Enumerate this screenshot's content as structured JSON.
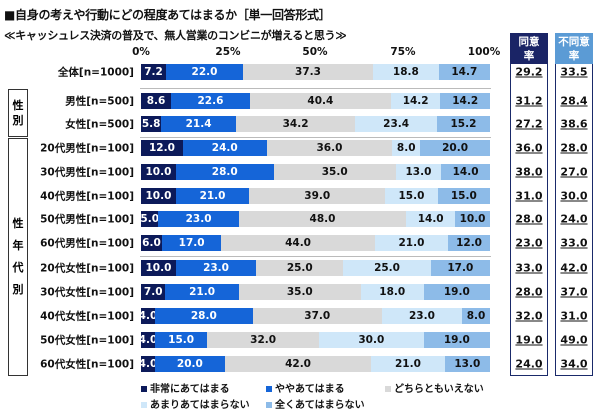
{
  "title": "■自身の考えや行動にどの程度あてはまるか［単一回答形式］",
  "subtitle": "≪キャッシュレス決済の普及で、無人営業のコンビニが増えると思う≫",
  "columns": {
    "agree": "同意率",
    "disagree": "不同意率",
    "agree_color": "#1a2466",
    "disagree_color": "#5b9bd5"
  },
  "groups": {
    "gender": "性別",
    "gender_age": "性年代別"
  },
  "chart_data": {
    "type": "bar",
    "stacked": true,
    "orientation": "horizontal",
    "xlim": [
      0,
      100
    ],
    "xticks": [
      "0%",
      "25%",
      "50%",
      "75%",
      "100%"
    ],
    "legend_position": "bottom",
    "series": [
      {
        "name": "非常にあてはまる",
        "color": "#0c1a5a"
      },
      {
        "name": "ややあてはまる",
        "color": "#1565d8"
      },
      {
        "name": "どちらともいえない",
        "color": "#d9d9d9"
      },
      {
        "name": "あまりあてはまらない",
        "color": "#cfe7f9"
      },
      {
        "name": "全くあてはまらない",
        "color": "#8dbbe8"
      }
    ],
    "rows": [
      {
        "label": "全体[n=1000]",
        "values": [
          7.2,
          22.0,
          37.3,
          18.8,
          14.7
        ],
        "labels": [
          "7.2",
          "22.0",
          "37.3",
          "18.8",
          "14.7"
        ],
        "agree": "29.2",
        "disagree": "33.5"
      },
      {
        "label": "男性[n=500]",
        "values": [
          8.6,
          22.6,
          40.4,
          14.2,
          14.2
        ],
        "labels": [
          "8.6",
          "22.6",
          "40.4",
          "14.2",
          "14.2"
        ],
        "agree": "31.2",
        "disagree": "28.4"
      },
      {
        "label": "女性[n=500]",
        "values": [
          5.8,
          21.4,
          34.2,
          23.4,
          15.2
        ],
        "labels": [
          "5.8",
          "21.4",
          "34.2",
          "23.4",
          "15.2"
        ],
        "agree": "27.2",
        "disagree": "38.6"
      },
      {
        "label": "20代男性[n=100]",
        "values": [
          12.0,
          24.0,
          36.0,
          8.0,
          20.0
        ],
        "labels": [
          "12.0",
          "24.0",
          "36.0",
          "8.0",
          "20.0"
        ],
        "agree": "36.0",
        "disagree": "28.0"
      },
      {
        "label": "30代男性[n=100]",
        "values": [
          10.0,
          28.0,
          35.0,
          13.0,
          14.0
        ],
        "labels": [
          "10.0",
          "28.0",
          "35.0",
          "13.0",
          "14.0"
        ],
        "agree": "38.0",
        "disagree": "27.0"
      },
      {
        "label": "40代男性[n=100]",
        "values": [
          10.0,
          21.0,
          39.0,
          15.0,
          15.0
        ],
        "labels": [
          "10.0",
          "21.0",
          "39.0",
          "15.0",
          "15.0"
        ],
        "agree": "31.0",
        "disagree": "30.0"
      },
      {
        "label": "50代男性[n=100]",
        "values": [
          5.0,
          23.0,
          48.0,
          14.0,
          10.0
        ],
        "labels": [
          "5.0",
          "23.0",
          "48.0",
          "14.0",
          "10.0"
        ],
        "agree": "28.0",
        "disagree": "24.0"
      },
      {
        "label": "60代男性[n=100]",
        "values": [
          6.0,
          17.0,
          44.0,
          21.0,
          12.0
        ],
        "labels": [
          "6.0",
          "17.0",
          "44.0",
          "21.0",
          "12.0"
        ],
        "agree": "23.0",
        "disagree": "33.0"
      },
      {
        "label": "20代女性[n=100]",
        "values": [
          10.0,
          23.0,
          25.0,
          25.0,
          17.0
        ],
        "labels": [
          "10.0",
          "23.0",
          "25.0",
          "25.0",
          "17.0"
        ],
        "agree": "33.0",
        "disagree": "42.0"
      },
      {
        "label": "30代女性[n=100]",
        "values": [
          7.0,
          21.0,
          35.0,
          18.0,
          19.0
        ],
        "labels": [
          "7.0",
          "21.0",
          "35.0",
          "18.0",
          "19.0"
        ],
        "agree": "28.0",
        "disagree": "37.0"
      },
      {
        "label": "40代女性[n=100]",
        "values": [
          4.0,
          28.0,
          37.0,
          23.0,
          8.0
        ],
        "labels": [
          "4.0",
          "28.0",
          "37.0",
          "23.0",
          "8.0"
        ],
        "agree": "32.0",
        "disagree": "31.0"
      },
      {
        "label": "50代女性[n=100]",
        "values": [
          4.0,
          15.0,
          32.0,
          30.0,
          19.0
        ],
        "labels": [
          "4.0",
          "15.0",
          "32.0",
          "30.0",
          "19.0"
        ],
        "agree": "19.0",
        "disagree": "49.0"
      },
      {
        "label": "60代女性[n=100]",
        "values": [
          4.0,
          20.0,
          42.0,
          21.0,
          13.0
        ],
        "labels": [
          "4.0",
          "20.0",
          "42.0",
          "21.0",
          "13.0"
        ],
        "agree": "24.0",
        "disagree": "34.0"
      }
    ]
  }
}
